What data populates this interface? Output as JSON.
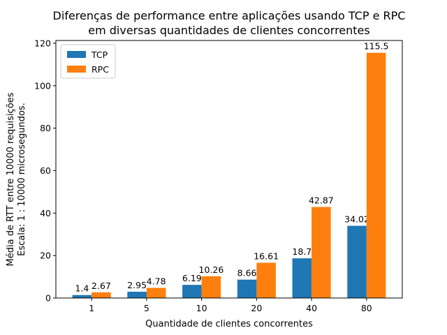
{
  "chart_data": {
    "type": "bar",
    "title": "Diferenças de performance entre aplicações usando TCP e RPC",
    "subtitle": "em diversas quantidades de clientes concorrentes",
    "xlabel": "Quantidade de clientes concorrentes",
    "ylabel": "Média de RTT entre 10000 requisições",
    "ylabel2": "Escala: 1 : 10000 microsegundos.",
    "categories": [
      "1",
      "5",
      "10",
      "20",
      "40",
      "80"
    ],
    "yticks": [
      0,
      20,
      40,
      60,
      80,
      100,
      120
    ],
    "ylim": [
      0,
      121.3
    ],
    "series": [
      {
        "name": "TCP",
        "color": "#1f77b4",
        "values": [
          1.4,
          2.95,
          6.19,
          8.66,
          18.7,
          34.02
        ],
        "labels": [
          "1.4",
          "2.95",
          "6.19",
          "8.66",
          "18.7",
          "34.02"
        ]
      },
      {
        "name": "RPC",
        "color": "#ff7f0e",
        "values": [
          2.67,
          4.78,
          10.26,
          16.61,
          42.87,
          115.5
        ],
        "labels": [
          "2.67",
          "4.78",
          "10.26",
          "16.61",
          "42.87",
          "115.5"
        ]
      }
    ],
    "legend_position": "top-left",
    "grid": false
  }
}
